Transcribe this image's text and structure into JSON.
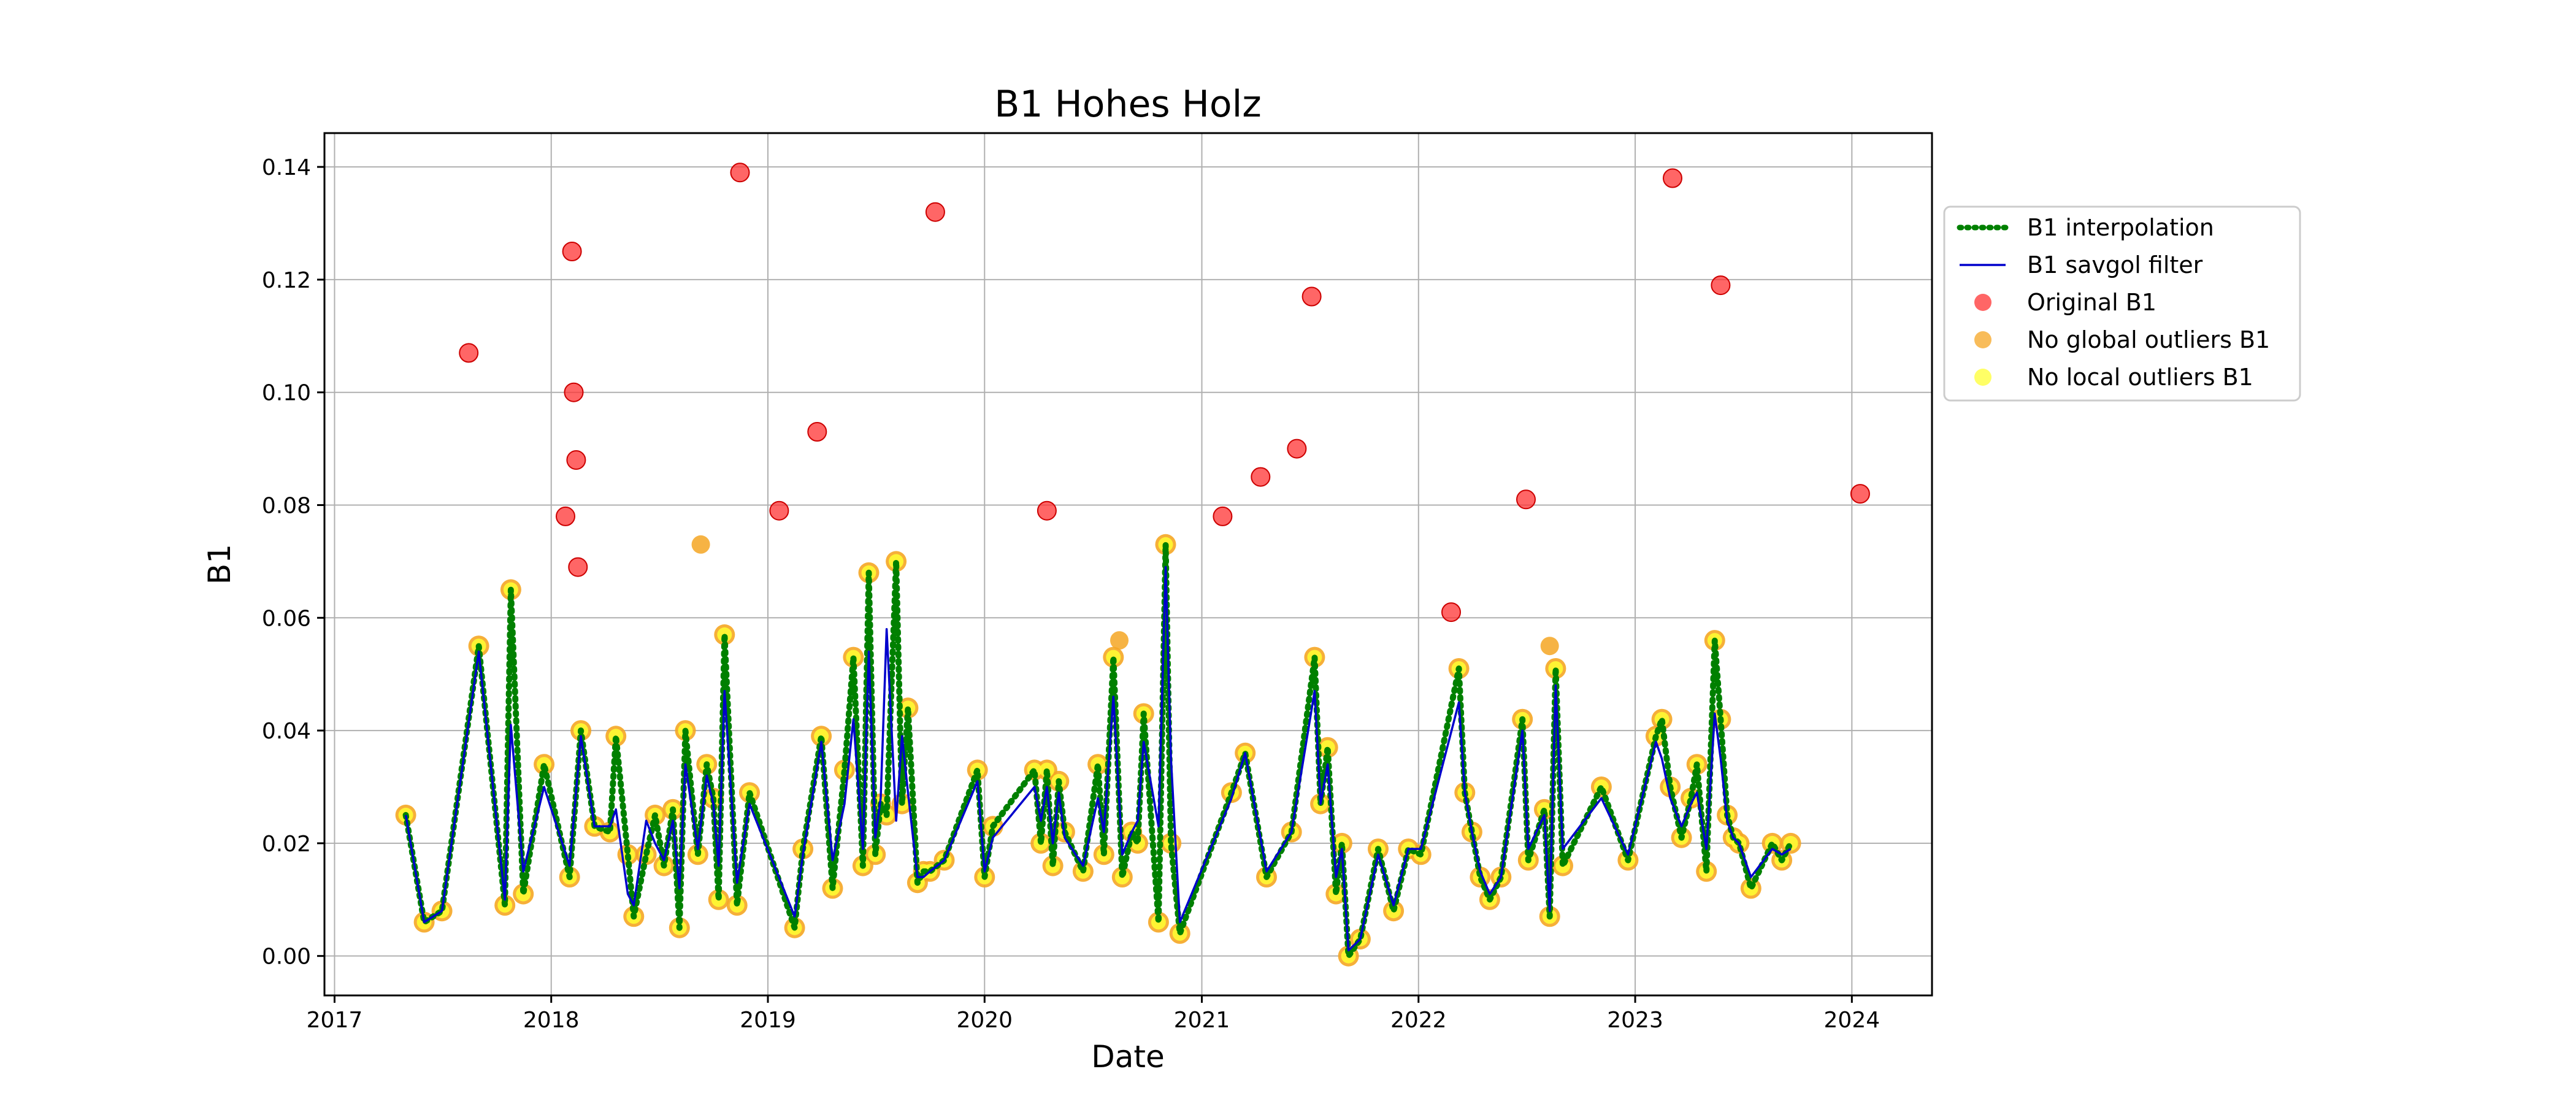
{
  "chart_data": {
    "type": "line",
    "title": "B1 Hohes Holz",
    "xlabel": "Date",
    "ylabel": "B1",
    "xlim": [
      "2016-12-15",
      "2024-05-15"
    ],
    "ylim": [
      -0.007,
      0.146
    ],
    "xticks": [
      "2017",
      "2018",
      "2019",
      "2020",
      "2021",
      "2022",
      "2023",
      "2024"
    ],
    "yticks": [
      "0.00",
      "0.02",
      "0.04",
      "0.06",
      "0.08",
      "0.10",
      "0.12",
      "0.14"
    ],
    "grid": true,
    "legend_position": "right",
    "series": [
      {
        "name": "B1 interpolation",
        "kind": "line",
        "style": "dotted",
        "color": "#008000",
        "x": [
          "2017-05-01",
          "2017-06-01",
          "2017-07-01",
          "2017-09-01",
          "2017-10-15",
          "2017-10-25",
          "2017-11-15",
          "2017-12-20",
          "2018-02-01",
          "2018-02-20",
          "2018-03-15",
          "2018-04-10",
          "2018-04-20",
          "2018-05-10",
          "2018-05-20",
          "2018-06-10",
          "2018-06-25",
          "2018-07-10",
          "2018-07-25",
          "2018-08-05",
          "2018-08-15",
          "2018-09-05",
          "2018-09-20",
          "2018-10-01",
          "2018-10-10",
          "2018-10-20",
          "2018-11-10",
          "2018-12-01",
          "2019-02-15",
          "2019-03-01",
          "2019-04-01",
          "2019-04-20",
          "2019-05-10",
          "2019-05-25",
          "2019-06-10",
          "2019-06-20",
          "2019-07-01",
          "2019-07-10",
          "2019-07-20",
          "2019-08-05",
          "2019-08-15",
          "2019-08-25",
          "2019-09-10",
          "2019-09-20",
          "2019-10-01",
          "2019-10-25",
          "2019-12-20",
          "2020-01-01",
          "2020-01-15",
          "2020-03-25",
          "2020-04-05",
          "2020-04-15",
          "2020-04-25",
          "2020-05-05",
          "2020-05-15",
          "2020-06-15",
          "2020-07-10",
          "2020-07-20",
          "2020-08-05",
          "2020-08-20",
          "2020-09-05",
          "2020-09-15",
          "2020-09-25",
          "2020-10-20",
          "2020-11-01",
          "2020-11-10",
          "2020-11-25",
          "2021-02-20",
          "2021-03-15",
          "2021-04-20",
          "2021-06-01",
          "2021-07-10",
          "2021-07-20",
          "2021-08-01",
          "2021-08-15",
          "2021-08-25",
          "2021-09-05",
          "2021-09-25",
          "2021-10-25",
          "2021-11-20",
          "2021-12-15",
          "2022-01-05",
          "2022-03-10",
          "2022-03-20",
          "2022-04-01",
          "2022-04-15",
          "2022-05-01",
          "2022-05-20",
          "2022-06-25",
          "2022-07-05",
          "2022-08-01",
          "2022-08-10",
          "2022-08-20",
          "2022-09-01",
          "2022-11-05",
          "2022-12-20",
          "2023-02-05",
          "2023-02-15",
          "2023-03-01",
          "2023-03-20",
          "2023-04-05",
          "2023-04-15",
          "2023-05-01",
          "2023-05-15",
          "2023-05-25",
          "2023-06-05",
          "2023-06-15",
          "2023-06-25",
          "2023-07-15",
          "2023-08-20",
          "2023-09-05",
          "2023-09-20"
        ],
        "values": [
          0.025,
          0.006,
          0.008,
          0.055,
          0.009,
          0.065,
          0.011,
          0.034,
          0.014,
          0.04,
          0.023,
          0.022,
          0.039,
          0.018,
          0.007,
          0.018,
          0.025,
          0.016,
          0.026,
          0.005,
          0.04,
          0.018,
          0.034,
          0.028,
          0.01,
          0.057,
          0.009,
          0.029,
          0.005,
          0.019,
          0.039,
          0.012,
          0.033,
          0.053,
          0.016,
          0.068,
          0.018,
          0.027,
          0.025,
          0.07,
          0.027,
          0.044,
          0.013,
          0.015,
          0.015,
          0.017,
          0.033,
          0.014,
          0.023,
          0.033,
          0.02,
          0.033,
          0.016,
          0.031,
          0.022,
          0.015,
          0.034,
          0.018,
          0.053,
          0.014,
          0.022,
          0.02,
          0.043,
          0.006,
          0.073,
          0.02,
          0.004,
          0.029,
          0.036,
          0.014,
          0.022,
          0.053,
          0.027,
          0.037,
          0.011,
          0.02,
          0.0,
          0.003,
          0.019,
          0.008,
          0.019,
          0.018,
          0.051,
          0.029,
          0.022,
          0.014,
          0.01,
          0.014,
          0.042,
          0.017,
          0.026,
          0.007,
          0.051,
          0.016,
          0.03,
          0.017,
          0.039,
          0.042,
          0.03,
          0.021,
          0.028,
          0.034,
          0.015,
          0.056,
          0.042,
          0.025,
          0.021,
          0.02,
          0.012,
          0.02,
          0.017,
          0.02
        ]
      },
      {
        "name": "B1 savgol filter",
        "kind": "line",
        "style": "solid",
        "color": "#0000cc",
        "x": [
          "2017-05-01",
          "2017-06-01",
          "2017-07-01",
          "2017-09-01",
          "2017-10-15",
          "2017-10-25",
          "2017-11-15",
          "2017-12-20",
          "2018-02-01",
          "2018-02-20",
          "2018-03-15",
          "2018-04-10",
          "2018-04-20",
          "2018-05-10",
          "2018-05-20",
          "2018-06-10",
          "2018-06-25",
          "2018-07-10",
          "2018-07-25",
          "2018-08-05",
          "2018-08-15",
          "2018-09-05",
          "2018-09-20",
          "2018-10-01",
          "2018-10-10",
          "2018-10-20",
          "2018-11-10",
          "2018-12-01",
          "2019-02-15",
          "2019-03-01",
          "2019-04-01",
          "2019-04-20",
          "2019-05-10",
          "2019-05-25",
          "2019-06-10",
          "2019-06-20",
          "2019-07-01",
          "2019-07-10",
          "2019-07-20",
          "2019-08-05",
          "2019-08-15",
          "2019-08-25",
          "2019-09-10",
          "2019-09-20",
          "2019-10-01",
          "2019-10-25",
          "2019-12-20",
          "2020-01-01",
          "2020-01-15",
          "2020-03-25",
          "2020-04-05",
          "2020-04-15",
          "2020-04-25",
          "2020-05-05",
          "2020-05-15",
          "2020-06-15",
          "2020-07-10",
          "2020-07-20",
          "2020-08-05",
          "2020-08-20",
          "2020-09-05",
          "2020-09-15",
          "2020-09-25",
          "2020-10-20",
          "2020-11-01",
          "2020-11-10",
          "2020-11-25",
          "2021-02-20",
          "2021-03-15",
          "2021-04-20",
          "2021-06-01",
          "2021-07-10",
          "2021-07-20",
          "2021-08-01",
          "2021-08-15",
          "2021-08-25",
          "2021-09-05",
          "2021-09-25",
          "2021-10-25",
          "2021-11-20",
          "2021-12-15",
          "2022-01-05",
          "2022-03-10",
          "2022-03-20",
          "2022-04-01",
          "2022-04-15",
          "2022-05-01",
          "2022-05-20",
          "2022-06-25",
          "2022-07-05",
          "2022-08-01",
          "2022-08-10",
          "2022-08-20",
          "2022-09-01",
          "2022-11-05",
          "2022-12-20",
          "2023-02-05",
          "2023-02-15",
          "2023-03-01",
          "2023-03-20",
          "2023-04-05",
          "2023-04-15",
          "2023-05-01",
          "2023-05-15",
          "2023-05-25",
          "2023-06-05",
          "2023-06-15",
          "2023-06-25",
          "2023-07-15",
          "2023-08-20",
          "2023-09-05",
          "2023-09-20"
        ],
        "values": [
          0.025,
          0.006,
          0.008,
          0.054,
          0.01,
          0.041,
          0.015,
          0.03,
          0.016,
          0.039,
          0.023,
          0.023,
          0.026,
          0.011,
          0.009,
          0.024,
          0.02,
          0.017,
          0.024,
          0.012,
          0.034,
          0.019,
          0.032,
          0.027,
          0.016,
          0.047,
          0.013,
          0.027,
          0.007,
          0.018,
          0.038,
          0.017,
          0.027,
          0.042,
          0.019,
          0.054,
          0.021,
          0.028,
          0.058,
          0.024,
          0.039,
          0.029,
          0.014,
          0.014,
          0.015,
          0.017,
          0.031,
          0.015,
          0.021,
          0.03,
          0.024,
          0.03,
          0.02,
          0.029,
          0.021,
          0.016,
          0.028,
          0.022,
          0.046,
          0.018,
          0.022,
          0.024,
          0.038,
          0.023,
          0.069,
          0.035,
          0.006,
          0.028,
          0.036,
          0.015,
          0.022,
          0.047,
          0.027,
          0.034,
          0.014,
          0.019,
          0.001,
          0.003,
          0.018,
          0.009,
          0.019,
          0.019,
          0.045,
          0.029,
          0.022,
          0.015,
          0.011,
          0.014,
          0.04,
          0.019,
          0.025,
          0.008,
          0.048,
          0.019,
          0.028,
          0.018,
          0.038,
          0.035,
          0.028,
          0.023,
          0.027,
          0.029,
          0.019,
          0.043,
          0.035,
          0.024,
          0.021,
          0.02,
          0.014,
          0.019,
          0.018,
          0.019
        ]
      },
      {
        "name": "Original B1",
        "kind": "scatter",
        "color": "#ff3333",
        "x": [
          "2017-08-15",
          "2018-01-25",
          "2018-02-05",
          "2018-02-08",
          "2018-02-12",
          "2018-02-15",
          "2018-11-15",
          "2019-01-20",
          "2019-03-25",
          "2019-10-10",
          "2020-04-15",
          "2021-02-05",
          "2021-04-10",
          "2021-06-10",
          "2021-07-05",
          "2022-02-25",
          "2022-07-01",
          "2023-03-05",
          "2023-05-25",
          "2024-01-15"
        ],
        "values": [
          0.107,
          0.078,
          0.125,
          0.1,
          0.088,
          0.069,
          0.139,
          0.079,
          0.093,
          0.132,
          0.079,
          0.078,
          0.085,
          0.09,
          0.117,
          0.061,
          0.081,
          0.138,
          0.119,
          0.082
        ]
      },
      {
        "name": "No global outliers B1",
        "kind": "scatter",
        "color": "#f5a623",
        "x": [
          "2018-09-10",
          "2020-08-15",
          "2022-08-10"
        ],
        "values": [
          0.073,
          0.056,
          0.055
        ]
      },
      {
        "name": "No local outliers B1",
        "kind": "scatter",
        "color": "#ffff33",
        "x": [
          "2017-05-01",
          "2017-06-01",
          "2017-07-01",
          "2017-09-01",
          "2017-10-15",
          "2017-10-25",
          "2017-11-15",
          "2017-12-20",
          "2018-02-01",
          "2018-02-20",
          "2018-03-15",
          "2018-04-10",
          "2018-04-20",
          "2018-05-10",
          "2018-05-20",
          "2018-06-10",
          "2018-06-25",
          "2018-07-10",
          "2018-07-25",
          "2018-08-05",
          "2018-08-15",
          "2018-09-05",
          "2018-09-20",
          "2018-10-01",
          "2018-10-10",
          "2018-10-20",
          "2018-11-10",
          "2018-12-01",
          "2019-02-15",
          "2019-03-01",
          "2019-04-01",
          "2019-04-20",
          "2019-05-10",
          "2019-05-25",
          "2019-06-10",
          "2019-06-20",
          "2019-07-01",
          "2019-07-10",
          "2019-07-20",
          "2019-08-05",
          "2019-08-15",
          "2019-08-25",
          "2019-09-10",
          "2019-09-20",
          "2019-10-01",
          "2019-10-25",
          "2019-12-20",
          "2020-01-01",
          "2020-01-15",
          "2020-03-25",
          "2020-04-05",
          "2020-04-15",
          "2020-04-25",
          "2020-05-05",
          "2020-05-15",
          "2020-06-15",
          "2020-07-10",
          "2020-07-20",
          "2020-08-05",
          "2020-08-20",
          "2020-09-05",
          "2020-09-15",
          "2020-09-25",
          "2020-10-20",
          "2020-11-01",
          "2020-11-10",
          "2020-11-25",
          "2021-02-20",
          "2021-03-15",
          "2021-04-20",
          "2021-06-01",
          "2021-07-10",
          "2021-07-20",
          "2021-08-01",
          "2021-08-15",
          "2021-08-25",
          "2021-09-05",
          "2021-09-25",
          "2021-10-25",
          "2021-11-20",
          "2021-12-15",
          "2022-01-05",
          "2022-03-10",
          "2022-03-20",
          "2022-04-01",
          "2022-04-15",
          "2022-05-01",
          "2022-05-20",
          "2022-06-25",
          "2022-07-05",
          "2022-08-01",
          "2022-08-10",
          "2022-08-20",
          "2022-09-01",
          "2022-11-05",
          "2022-12-20",
          "2023-02-05",
          "2023-02-15",
          "2023-03-01",
          "2023-03-20",
          "2023-04-05",
          "2023-04-15",
          "2023-05-01",
          "2023-05-15",
          "2023-05-25",
          "2023-06-05",
          "2023-06-15",
          "2023-06-25",
          "2023-07-15",
          "2023-08-20",
          "2023-09-05",
          "2023-09-20"
        ],
        "values": [
          0.025,
          0.006,
          0.008,
          0.055,
          0.009,
          0.065,
          0.011,
          0.034,
          0.014,
          0.04,
          0.023,
          0.022,
          0.039,
          0.018,
          0.007,
          0.018,
          0.025,
          0.016,
          0.026,
          0.005,
          0.04,
          0.018,
          0.034,
          0.028,
          0.01,
          0.057,
          0.009,
          0.029,
          0.005,
          0.019,
          0.039,
          0.012,
          0.033,
          0.053,
          0.016,
          0.068,
          0.018,
          0.027,
          0.025,
          0.07,
          0.027,
          0.044,
          0.013,
          0.015,
          0.015,
          0.017,
          0.033,
          0.014,
          0.023,
          0.033,
          0.02,
          0.033,
          0.016,
          0.031,
          0.022,
          0.015,
          0.034,
          0.018,
          0.053,
          0.014,
          0.022,
          0.02,
          0.043,
          0.006,
          0.073,
          0.02,
          0.004,
          0.029,
          0.036,
          0.014,
          0.022,
          0.053,
          0.027,
          0.037,
          0.011,
          0.02,
          0.0,
          0.003,
          0.019,
          0.008,
          0.019,
          0.018,
          0.051,
          0.029,
          0.022,
          0.014,
          0.01,
          0.014,
          0.042,
          0.017,
          0.026,
          0.007,
          0.051,
          0.016,
          0.03,
          0.017,
          0.039,
          0.042,
          0.03,
          0.021,
          0.028,
          0.034,
          0.015,
          0.056,
          0.042,
          0.025,
          0.021,
          0.02,
          0.012,
          0.02,
          0.017,
          0.02
        ]
      }
    ]
  }
}
